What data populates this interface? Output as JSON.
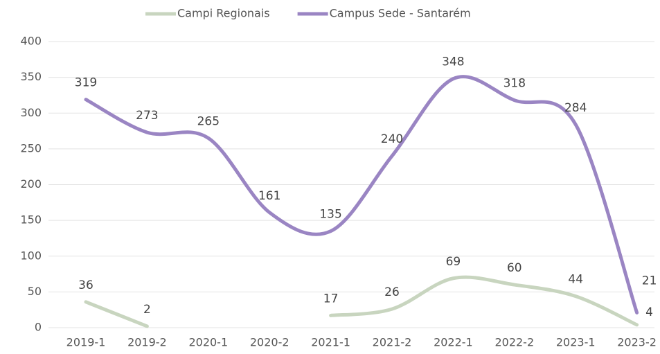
{
  "chart_data": {
    "type": "line",
    "categories": [
      "2019-1",
      "2019-2",
      "2020-1",
      "2020-2",
      "2021-1",
      "2021-2",
      "2022-1",
      "2022-2",
      "2023-1",
      "2023-2"
    ],
    "series": [
      {
        "name": "Campi Regionais",
        "color": "#c8d5bf",
        "values": [
          36,
          2,
          null,
          null,
          17,
          26,
          69,
          60,
          44,
          4
        ]
      },
      {
        "name": "Campus Sede - Santarém",
        "color": "#9a85c3",
        "values": [
          319,
          273,
          265,
          161,
          135,
          240,
          348,
          318,
          284,
          21
        ]
      }
    ],
    "ylim": [
      0,
      400
    ],
    "yticks": [
      0,
      50,
      100,
      150,
      200,
      250,
      300,
      350,
      400
    ],
    "grid": true,
    "legend": "top",
    "smooth": true
  }
}
